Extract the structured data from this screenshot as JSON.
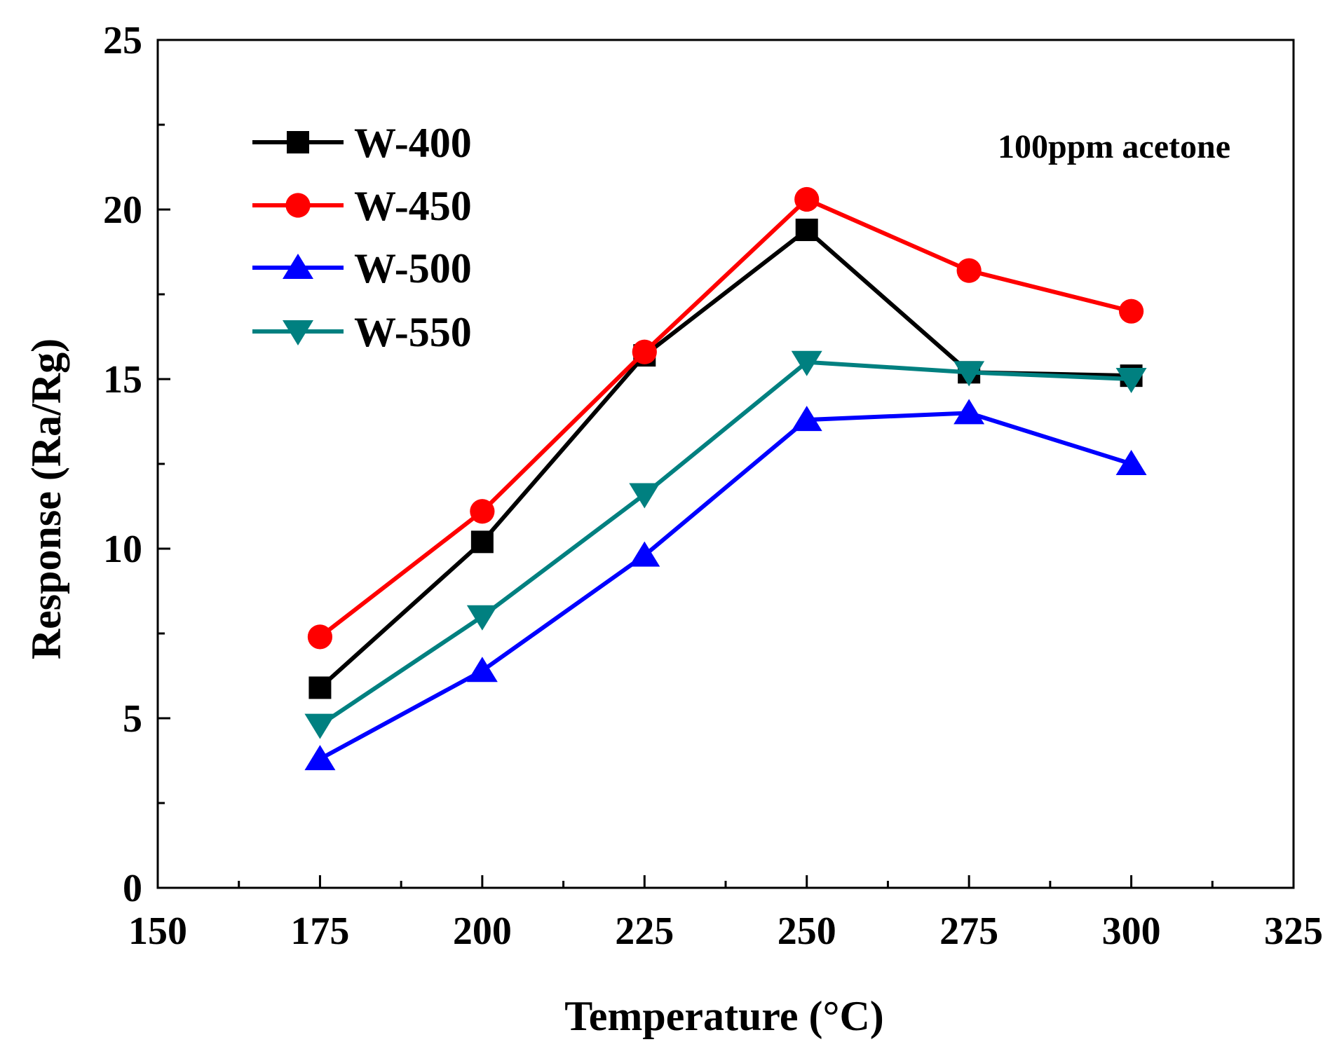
{
  "chart_data": {
    "type": "line",
    "title": "",
    "xlabel": "Temperature (°C)",
    "ylabel": "Response (Ra/Rg)",
    "xlim": [
      150,
      325
    ],
    "ylim": [
      0,
      25
    ],
    "x_ticks": [
      150,
      175,
      200,
      225,
      250,
      275,
      300,
      325
    ],
    "y_ticks": [
      0,
      5,
      10,
      15,
      20,
      25
    ],
    "grid": false,
    "legend_position": "top-left",
    "annotation": "100ppm acetone",
    "x": [
      175,
      200,
      225,
      250,
      275,
      300
    ],
    "series": [
      {
        "name": "W-400",
        "color": "#000000",
        "marker": "square",
        "values": [
          5.9,
          10.2,
          15.7,
          19.4,
          15.2,
          15.1
        ]
      },
      {
        "name": "W-450",
        "color": "#ff0000",
        "marker": "circle",
        "values": [
          7.4,
          11.1,
          15.8,
          20.3,
          18.2,
          17.0
        ]
      },
      {
        "name": "W-500",
        "color": "#0000ff",
        "marker": "triangle-up",
        "values": [
          3.8,
          6.4,
          9.8,
          13.8,
          14.0,
          12.5
        ]
      },
      {
        "name": "W-550",
        "color": "#008080",
        "marker": "triangle-down",
        "values": [
          4.8,
          8.0,
          11.6,
          15.5,
          15.2,
          15.0
        ]
      }
    ]
  }
}
